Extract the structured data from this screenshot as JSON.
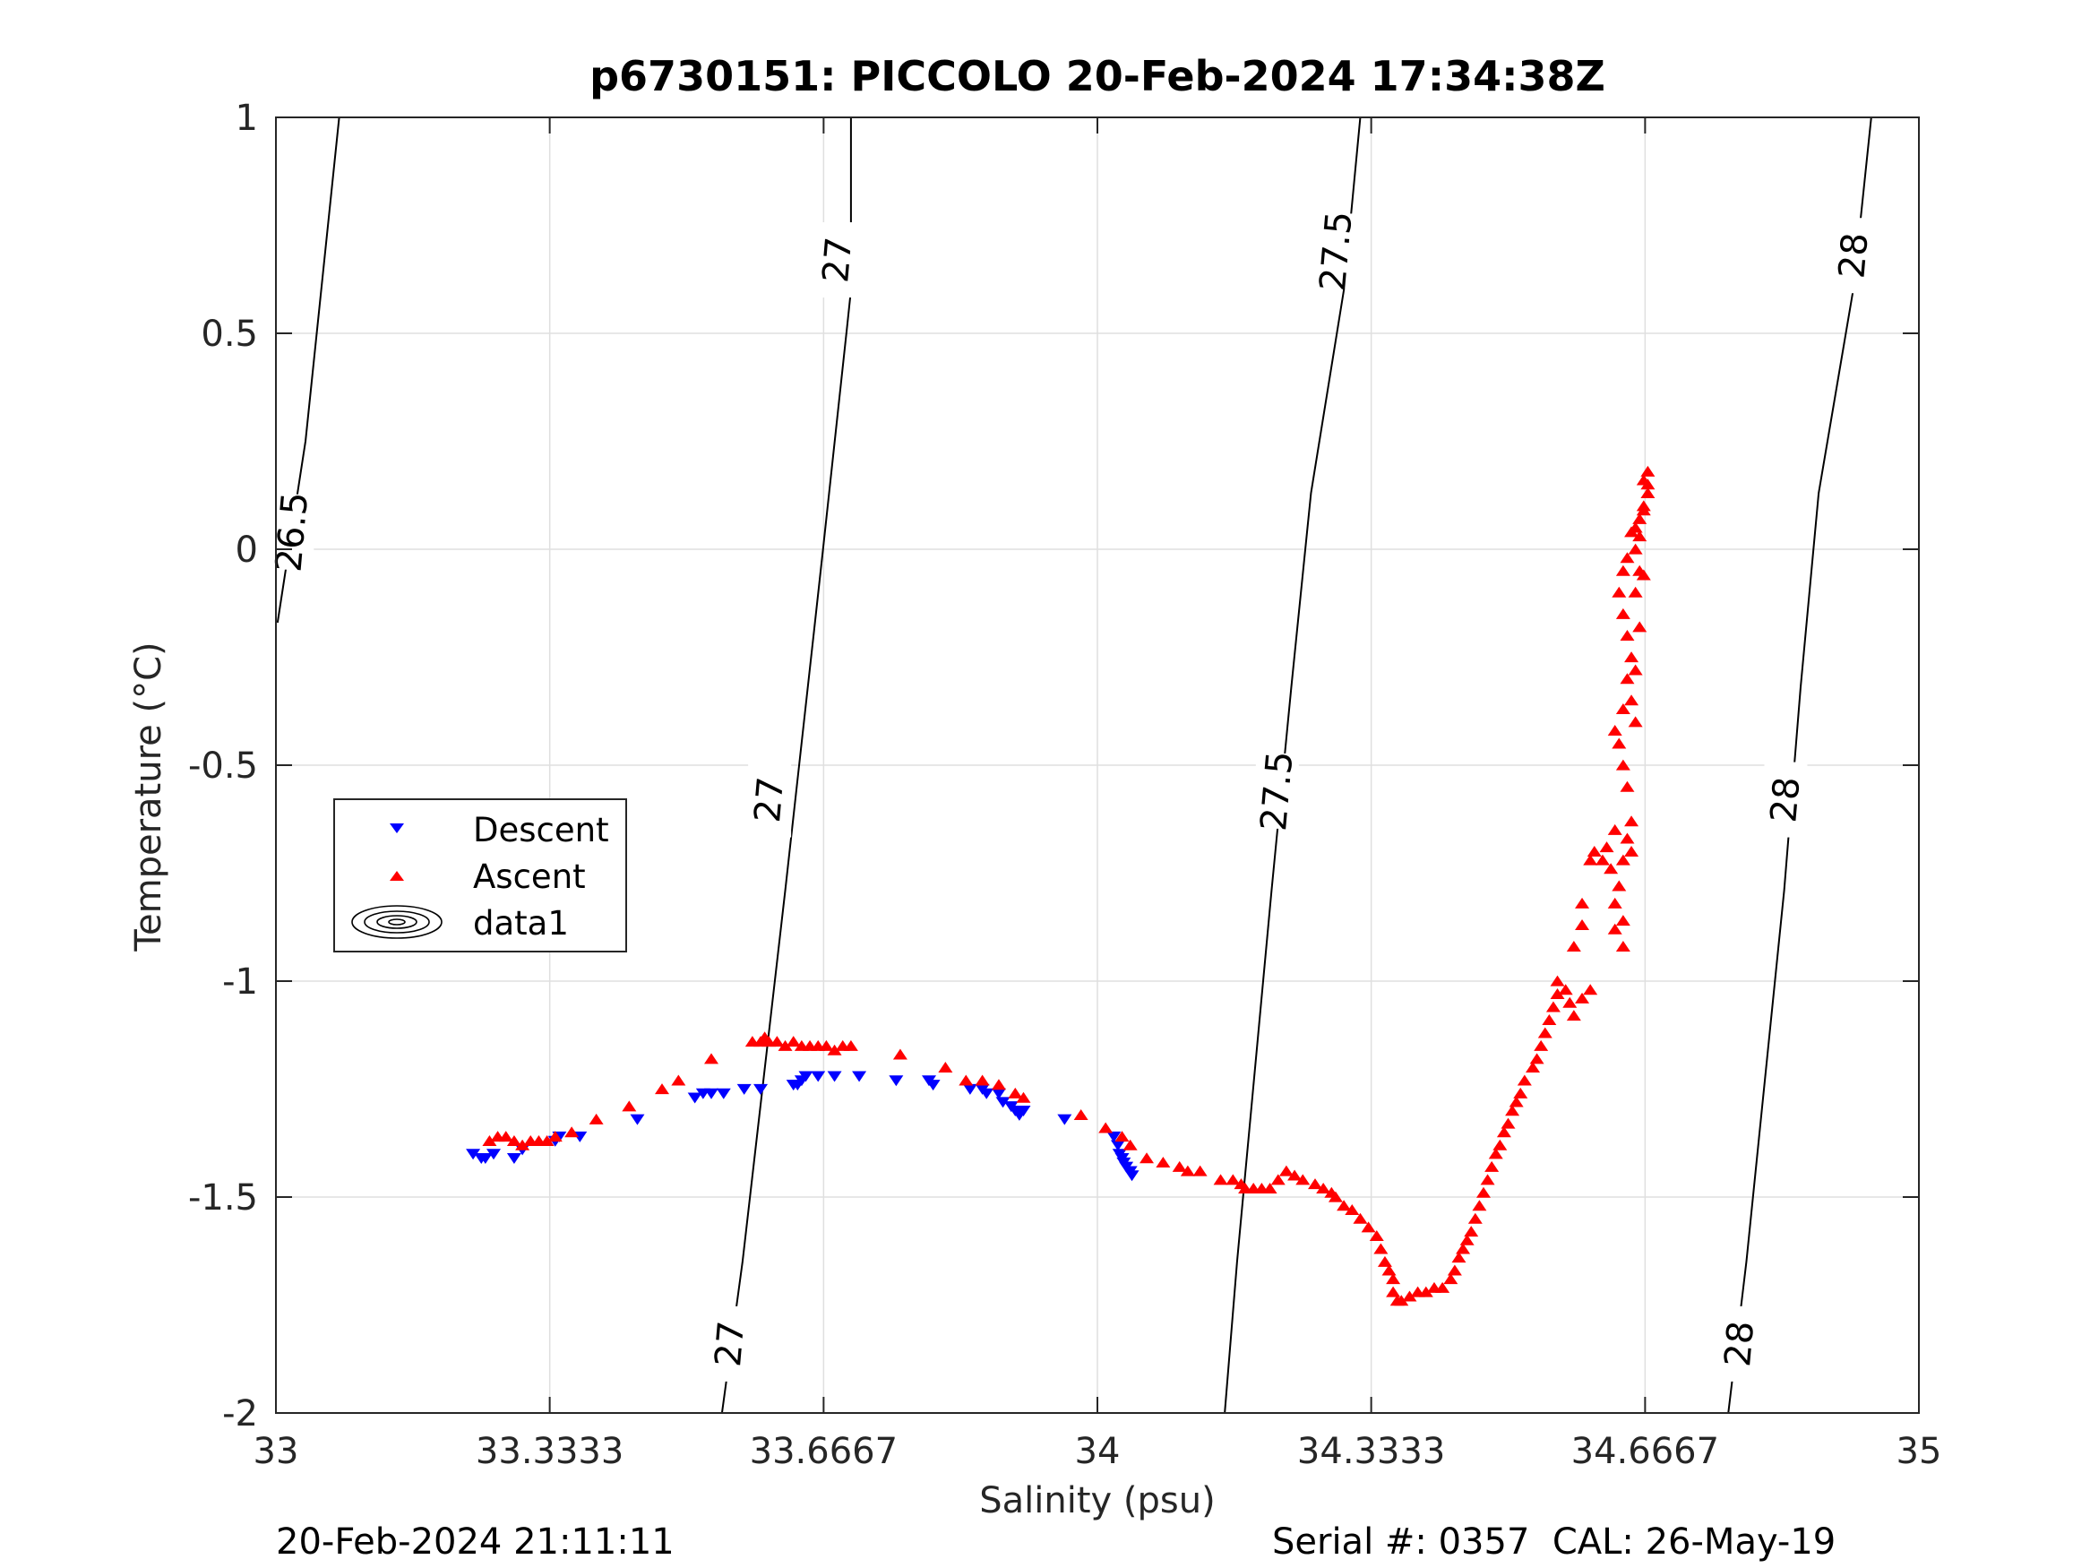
{
  "title": "p6730151: PICCOLO 20-Feb-2024 17:34:38Z",
  "footer": {
    "timestamp": "20-Feb-2024 21:11:11",
    "serial_cal": "Serial #: 0357  CAL: 26-May-19"
  },
  "colors": {
    "descent": "#0000ff",
    "ascent": "#ff0000",
    "contour": "#000000",
    "grid": "#dfdfdf",
    "axis": "#262626"
  },
  "legend": {
    "placement": "middle-left",
    "items": [
      {
        "label": "Descent",
        "marker": "triangle-down",
        "color": "#0000ff"
      },
      {
        "label": "Ascent",
        "marker": "triangle-up",
        "color": "#ff0000"
      },
      {
        "label": "data1",
        "marker": "contour-ellipses",
        "color": "#000000"
      }
    ]
  },
  "chart_data": {
    "type": "scatter",
    "title": "p6730151: PICCOLO 20-Feb-2024 17:34:38Z",
    "xlabel": "Salinity (psu)",
    "ylabel": "Temperature (°C)",
    "xlim": [
      33,
      35
    ],
    "ylim": [
      -2,
      1
    ],
    "xticks": [
      33,
      33.3333,
      33.6667,
      34,
      34.3333,
      34.6667,
      35
    ],
    "xtick_labels": [
      "33",
      "33.3333",
      "33.6667",
      "34",
      "34.3333",
      "34.6667",
      "35"
    ],
    "yticks": [
      -2,
      -1.5,
      -1,
      -0.5,
      0,
      0.5,
      1
    ],
    "ytick_labels": [
      "-2",
      "-1.5",
      "-1",
      "-0.5",
      "0",
      "0.5",
      "1"
    ],
    "grid": true,
    "legend_placement": "middle-left",
    "contours": [
      {
        "label": "26.5",
        "points": [
          [
            33.002,
            -0.17
          ],
          [
            33.036,
            0.25
          ],
          [
            33.077,
            1.0
          ]
        ],
        "labels_at": [
          [
            33.02,
            0.04
          ]
        ]
      },
      {
        "label": "27",
        "points": [
          [
            33.543,
            -2.0
          ],
          [
            33.568,
            -1.65
          ],
          [
            33.62,
            -0.79
          ],
          [
            33.655,
            -0.19
          ],
          [
            33.666,
            0.0
          ],
          [
            33.695,
            0.51
          ],
          [
            33.7,
            0.6
          ],
          [
            33.7,
            1.0
          ]
        ],
        "labels_at": [
          [
            33.553,
            -1.84
          ],
          [
            33.601,
            -0.58
          ],
          [
            33.684,
            0.67
          ]
        ]
      },
      {
        "label": "27.5",
        "points": [
          [
            34.155,
            -2.0
          ],
          [
            34.17,
            -1.65
          ],
          [
            34.212,
            -0.79
          ],
          [
            34.236,
            -0.32
          ],
          [
            34.26,
            0.13
          ],
          [
            34.3,
            0.6
          ],
          [
            34.32,
            1.0
          ]
        ],
        "labels_at": [
          [
            34.219,
            -0.56
          ],
          [
            34.291,
            0.69
          ]
        ]
      },
      {
        "label": "28",
        "points": [
          [
            34.768,
            -2.0
          ],
          [
            34.79,
            -1.65
          ],
          [
            34.836,
            -0.79
          ],
          [
            34.856,
            -0.32
          ],
          [
            34.878,
            0.13
          ],
          [
            34.92,
            0.6
          ],
          [
            34.942,
            1.0
          ]
        ],
        "labels_at": [
          [
            34.782,
            -1.84
          ],
          [
            34.838,
            -0.58
          ],
          [
            34.921,
            0.68
          ]
        ]
      }
    ],
    "series": [
      {
        "name": "Descent",
        "marker": "triangle-down",
        "points": [
          [
            33.24,
            -1.4
          ],
          [
            33.25,
            -1.41
          ],
          [
            33.255,
            -1.41
          ],
          [
            33.265,
            -1.4
          ],
          [
            33.29,
            -1.41
          ],
          [
            33.3,
            -1.39
          ],
          [
            33.34,
            -1.37
          ],
          [
            33.345,
            -1.36
          ],
          [
            33.37,
            -1.36
          ],
          [
            33.44,
            -1.32
          ],
          [
            33.51,
            -1.27
          ],
          [
            33.52,
            -1.26
          ],
          [
            33.53,
            -1.26
          ],
          [
            33.545,
            -1.26
          ],
          [
            33.57,
            -1.25
          ],
          [
            33.59,
            -1.25
          ],
          [
            33.63,
            -1.24
          ],
          [
            33.635,
            -1.24
          ],
          [
            33.64,
            -1.23
          ],
          [
            33.645,
            -1.22
          ],
          [
            33.66,
            -1.22
          ],
          [
            33.68,
            -1.22
          ],
          [
            33.71,
            -1.22
          ],
          [
            33.755,
            -1.23
          ],
          [
            33.795,
            -1.23
          ],
          [
            33.8,
            -1.24
          ],
          [
            33.845,
            -1.25
          ],
          [
            33.86,
            -1.25
          ],
          [
            33.865,
            -1.26
          ],
          [
            33.88,
            -1.26
          ],
          [
            33.885,
            -1.28
          ],
          [
            33.895,
            -1.29
          ],
          [
            33.9,
            -1.3
          ],
          [
            33.905,
            -1.31
          ],
          [
            33.91,
            -1.3
          ],
          [
            33.96,
            -1.32
          ],
          [
            34.02,
            -1.36
          ],
          [
            34.025,
            -1.38
          ],
          [
            34.027,
            -1.4
          ],
          [
            34.03,
            -1.41
          ],
          [
            34.032,
            -1.42
          ],
          [
            34.035,
            -1.43
          ],
          [
            34.04,
            -1.44
          ],
          [
            34.042,
            -1.45
          ]
        ]
      },
      {
        "name": "Ascent",
        "marker": "triangle-up",
        "points": [
          [
            33.26,
            -1.37
          ],
          [
            33.27,
            -1.36
          ],
          [
            33.28,
            -1.36
          ],
          [
            33.29,
            -1.37
          ],
          [
            33.3,
            -1.38
          ],
          [
            33.31,
            -1.37
          ],
          [
            33.32,
            -1.37
          ],
          [
            33.33,
            -1.37
          ],
          [
            33.34,
            -1.36
          ],
          [
            33.36,
            -1.35
          ],
          [
            33.39,
            -1.32
          ],
          [
            33.43,
            -1.29
          ],
          [
            33.47,
            -1.25
          ],
          [
            33.49,
            -1.23
          ],
          [
            33.53,
            -1.18
          ],
          [
            33.58,
            -1.14
          ],
          [
            33.59,
            -1.14
          ],
          [
            33.595,
            -1.13
          ],
          [
            33.6,
            -1.14
          ],
          [
            33.61,
            -1.14
          ],
          [
            33.62,
            -1.15
          ],
          [
            33.63,
            -1.14
          ],
          [
            33.64,
            -1.15
          ],
          [
            33.65,
            -1.15
          ],
          [
            33.66,
            -1.15
          ],
          [
            33.67,
            -1.15
          ],
          [
            33.68,
            -1.16
          ],
          [
            33.69,
            -1.15
          ],
          [
            33.7,
            -1.15
          ],
          [
            33.76,
            -1.17
          ],
          [
            33.815,
            -1.2
          ],
          [
            33.84,
            -1.23
          ],
          [
            33.86,
            -1.23
          ],
          [
            33.88,
            -1.24
          ],
          [
            33.9,
            -1.26
          ],
          [
            33.91,
            -1.27
          ],
          [
            33.98,
            -1.31
          ],
          [
            34.01,
            -1.34
          ],
          [
            34.03,
            -1.36
          ],
          [
            34.04,
            -1.38
          ],
          [
            34.06,
            -1.41
          ],
          [
            34.08,
            -1.42
          ],
          [
            34.1,
            -1.43
          ],
          [
            34.11,
            -1.44
          ],
          [
            34.125,
            -1.44
          ],
          [
            34.15,
            -1.46
          ],
          [
            34.165,
            -1.46
          ],
          [
            34.175,
            -1.47
          ],
          [
            34.18,
            -1.48
          ],
          [
            34.19,
            -1.48
          ],
          [
            34.2,
            -1.48
          ],
          [
            34.21,
            -1.48
          ],
          [
            34.22,
            -1.46
          ],
          [
            34.23,
            -1.44
          ],
          [
            34.24,
            -1.45
          ],
          [
            34.25,
            -1.46
          ],
          [
            34.265,
            -1.47
          ],
          [
            34.275,
            -1.48
          ],
          [
            34.285,
            -1.49
          ],
          [
            34.29,
            -1.5
          ],
          [
            34.3,
            -1.52
          ],
          [
            34.31,
            -1.53
          ],
          [
            34.32,
            -1.55
          ],
          [
            34.33,
            -1.57
          ],
          [
            34.34,
            -1.59
          ],
          [
            34.345,
            -1.62
          ],
          [
            34.35,
            -1.65
          ],
          [
            34.355,
            -1.67
          ],
          [
            34.36,
            -1.69
          ],
          [
            34.36,
            -1.72
          ],
          [
            34.365,
            -1.74
          ],
          [
            34.37,
            -1.74
          ],
          [
            34.38,
            -1.73
          ],
          [
            34.39,
            -1.72
          ],
          [
            34.4,
            -1.72
          ],
          [
            34.41,
            -1.71
          ],
          [
            34.42,
            -1.71
          ],
          [
            34.43,
            -1.69
          ],
          [
            34.435,
            -1.67
          ],
          [
            34.44,
            -1.64
          ],
          [
            34.445,
            -1.62
          ],
          [
            34.45,
            -1.6
          ],
          [
            34.455,
            -1.58
          ],
          [
            34.46,
            -1.55
          ],
          [
            34.465,
            -1.52
          ],
          [
            34.47,
            -1.49
          ],
          [
            34.475,
            -1.46
          ],
          [
            34.48,
            -1.43
          ],
          [
            34.485,
            -1.4
          ],
          [
            34.49,
            -1.38
          ],
          [
            34.495,
            -1.35
          ],
          [
            34.5,
            -1.33
          ],
          [
            34.505,
            -1.3
          ],
          [
            34.51,
            -1.28
          ],
          [
            34.515,
            -1.26
          ],
          [
            34.52,
            -1.23
          ],
          [
            34.53,
            -1.2
          ],
          [
            34.535,
            -1.18
          ],
          [
            34.54,
            -1.15
          ],
          [
            34.545,
            -1.12
          ],
          [
            34.55,
            -1.09
          ],
          [
            34.555,
            -1.06
          ],
          [
            34.56,
            -1.03
          ],
          [
            34.56,
            -1.0
          ],
          [
            34.57,
            -1.02
          ],
          [
            34.575,
            -1.05
          ],
          [
            34.58,
            -1.08
          ],
          [
            34.59,
            -1.04
          ],
          [
            34.6,
            -1.02
          ],
          [
            34.58,
            -0.92
          ],
          [
            34.59,
            -0.87
          ],
          [
            34.59,
            -0.82
          ],
          [
            34.6,
            -0.72
          ],
          [
            34.605,
            -0.7
          ],
          [
            34.615,
            -0.72
          ],
          [
            34.62,
            -0.69
          ],
          [
            34.63,
            -0.65
          ],
          [
            34.625,
            -0.74
          ],
          [
            34.63,
            -0.82
          ],
          [
            34.63,
            -0.88
          ],
          [
            34.64,
            -0.92
          ],
          [
            34.64,
            -0.86
          ],
          [
            34.635,
            -0.78
          ],
          [
            34.64,
            -0.72
          ],
          [
            34.645,
            -0.67
          ],
          [
            34.65,
            -0.7
          ],
          [
            34.65,
            -0.63
          ],
          [
            34.645,
            -0.55
          ],
          [
            34.64,
            -0.5
          ],
          [
            34.635,
            -0.45
          ],
          [
            34.63,
            -0.42
          ],
          [
            34.64,
            -0.37
          ],
          [
            34.645,
            -0.3
          ],
          [
            34.65,
            -0.25
          ],
          [
            34.655,
            -0.28
          ],
          [
            34.65,
            -0.35
          ],
          [
            34.655,
            -0.4
          ],
          [
            34.645,
            -0.2
          ],
          [
            34.64,
            -0.15
          ],
          [
            34.635,
            -0.1
          ],
          [
            34.64,
            -0.05
          ],
          [
            34.645,
            -0.02
          ],
          [
            34.655,
            -0.1
          ],
          [
            34.66,
            -0.18
          ],
          [
            34.66,
            -0.05
          ],
          [
            34.655,
            0.0
          ],
          [
            34.65,
            0.04
          ],
          [
            34.655,
            0.05
          ],
          [
            34.66,
            0.07
          ],
          [
            34.665,
            0.1
          ],
          [
            34.67,
            0.13
          ],
          [
            34.665,
            0.16
          ],
          [
            34.67,
            0.18
          ],
          [
            34.67,
            0.15
          ],
          [
            34.665,
            0.09
          ],
          [
            34.66,
            0.03
          ],
          [
            34.665,
            -0.06
          ]
        ]
      }
    ]
  }
}
